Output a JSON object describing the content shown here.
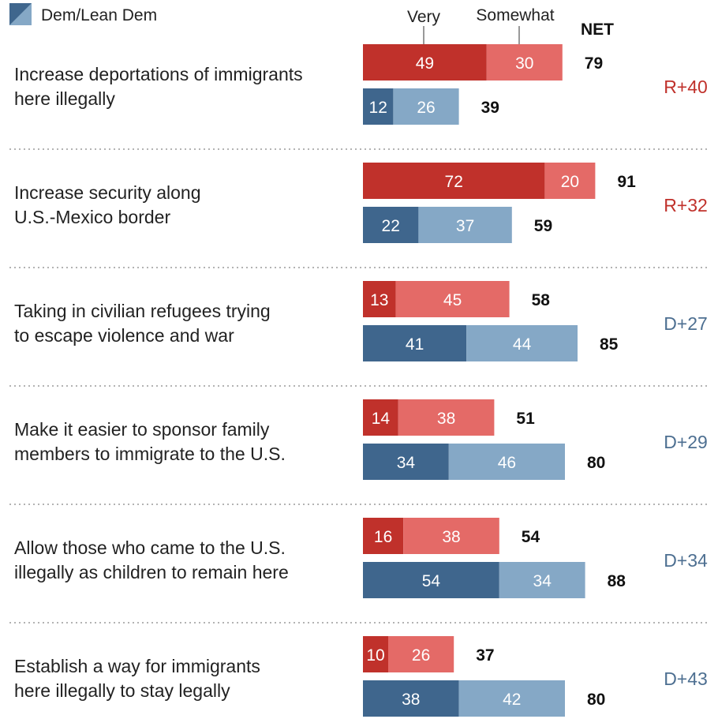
{
  "legend": {
    "label": "Dem/Lean Dem"
  },
  "headers": {
    "very": "Very",
    "somewhat": "Somewhat",
    "net": "NET"
  },
  "colors": {
    "rep_very": "#c0312b",
    "rep_somewhat": "#e46a67",
    "dem_very": "#3f668d",
    "dem_somewhat": "#85a8c6",
    "rep_text": "#c0312b",
    "dem_text": "#4d6f91"
  },
  "chart_data": {
    "type": "bar",
    "orientation": "horizontal",
    "stacked": true,
    "series": [
      {
        "name": "Very",
        "role": "very"
      },
      {
        "name": "Somewhat",
        "role": "somewhat"
      }
    ],
    "rows": [
      {
        "label_lines": [
          "Increase deportations of immigrants",
          "here illegally"
        ],
        "rep": {
          "very": 49,
          "somewhat": 30,
          "net": 79
        },
        "dem": {
          "very": 12,
          "somewhat": 26,
          "net": 39
        },
        "gap": "R+40",
        "gap_party": "rep"
      },
      {
        "label_lines": [
          "Increase security along",
          "U.S.-Mexico border"
        ],
        "rep": {
          "very": 72,
          "somewhat": 20,
          "net": 91
        },
        "dem": {
          "very": 22,
          "somewhat": 37,
          "net": 59
        },
        "gap": "R+32",
        "gap_party": "rep"
      },
      {
        "label_lines": [
          "Taking in civilian refugees trying",
          "to escape violence and war"
        ],
        "rep": {
          "very": 13,
          "somewhat": 45,
          "net": 58
        },
        "dem": {
          "very": 41,
          "somewhat": 44,
          "net": 85
        },
        "gap": "D+27",
        "gap_party": "dem"
      },
      {
        "label_lines": [
          "Make it easier to sponsor family",
          "members to immigrate to the U.S."
        ],
        "rep": {
          "very": 14,
          "somewhat": 38,
          "net": 51
        },
        "dem": {
          "very": 34,
          "somewhat": 46,
          "net": 80
        },
        "gap": "D+29",
        "gap_party": "dem"
      },
      {
        "label_lines": [
          "Allow those who came to the U.S.",
          "illegally as children to remain here"
        ],
        "rep": {
          "very": 16,
          "somewhat": 38,
          "net": 54
        },
        "dem": {
          "very": 54,
          "somewhat": 34,
          "net": 88
        },
        "gap": "D+34",
        "gap_party": "dem"
      },
      {
        "label_lines": [
          "Establish a way for immigrants",
          "here illegally to stay legally"
        ],
        "rep": {
          "very": 10,
          "somewhat": 26,
          "net": 37
        },
        "dem": {
          "very": 38,
          "somewhat": 42,
          "net": 80
        },
        "gap": "D+43",
        "gap_party": "dem"
      }
    ]
  }
}
